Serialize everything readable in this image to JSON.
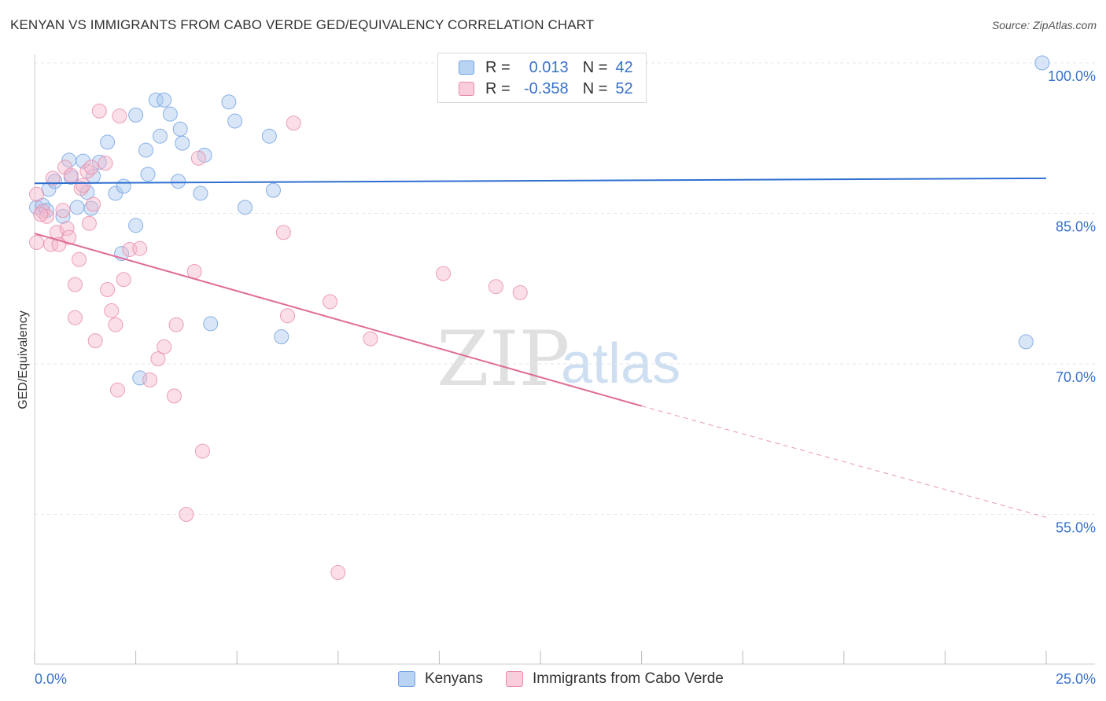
{
  "title": "KENYAN VS IMMIGRANTS FROM CABO VERDE GED/EQUIVALENCY CORRELATION CHART",
  "source": "Source: ZipAtlas.com",
  "watermark": {
    "zip": "ZIP",
    "atlas": "atlas"
  },
  "legend": {
    "kenyans": {
      "r_label": "R =",
      "r_value": "0.013",
      "n_label": "N =",
      "n_value": "42"
    },
    "caboverde": {
      "r_label": "R =",
      "r_value": "-0.358",
      "n_label": "N =",
      "n_value": "52"
    }
  },
  "bottom_legend": {
    "kenyans": "Kenyans",
    "caboverde": "Immigrants from Cabo Verde"
  },
  "colors": {
    "blue_fill": "#a9c8f0",
    "blue_stroke": "#6f9fe0",
    "blue_line": "#2f6fd0",
    "pink_fill": "#f5b8cc",
    "pink_stroke": "#e98aa8",
    "pink_line": "#e06c97",
    "axis_text": "#3a72c9",
    "grid": "#e6e6e6"
  },
  "chart_data": {
    "type": "scatter",
    "title": "KENYAN VS IMMIGRANTS FROM CABO VERDE GED/EQUIVALENCY CORRELATION CHART",
    "xlabel": "",
    "ylabel": "GED/Equivalency",
    "xlim": [
      0,
      25
    ],
    "ylim": [
      41,
      101
    ],
    "x_tick_labels": [
      "0.0%",
      "25.0%"
    ],
    "y_ticks": [
      55,
      70,
      85,
      100
    ],
    "y_tick_labels": [
      "55.0%",
      "70.0%",
      "85.0%",
      "100.0%"
    ],
    "grid": true,
    "legend_position": "top-center",
    "series": [
      {
        "name": "Kenyans",
        "color": "#6f9fe0",
        "trend": {
          "x": [
            0,
            25
          ],
          "y": [
            88.0,
            88.5
          ],
          "dashed_from": null
        },
        "points": [
          [
            0.05,
            85.6
          ],
          [
            0.2,
            85.8
          ],
          [
            0.3,
            85.3
          ],
          [
            0.35,
            87.4
          ],
          [
            0.5,
            88.2
          ],
          [
            0.7,
            84.7
          ],
          [
            0.85,
            90.3
          ],
          [
            0.9,
            88.6
          ],
          [
            1.2,
            90.2
          ],
          [
            1.3,
            87.1
          ],
          [
            1.4,
            85.5
          ],
          [
            1.45,
            88.7
          ],
          [
            1.6,
            90.1
          ],
          [
            1.8,
            92.1
          ],
          [
            2.0,
            87.0
          ],
          [
            2.15,
            81.0
          ],
          [
            2.2,
            87.7
          ],
          [
            2.5,
            83.8
          ],
          [
            2.5,
            94.8
          ],
          [
            2.75,
            91.3
          ],
          [
            2.8,
            88.9
          ],
          [
            3.0,
            96.3
          ],
          [
            3.1,
            92.7
          ],
          [
            3.2,
            96.3
          ],
          [
            3.35,
            94.9
          ],
          [
            3.55,
            88.2
          ],
          [
            3.65,
            92.0
          ],
          [
            3.6,
            93.4
          ],
          [
            4.1,
            87.0
          ],
          [
            4.2,
            90.8
          ],
          [
            4.35,
            74.0
          ],
          [
            4.8,
            96.1
          ],
          [
            4.95,
            94.2
          ],
          [
            5.2,
            85.6
          ],
          [
            5.8,
            92.7
          ],
          [
            5.9,
            87.3
          ],
          [
            6.1,
            72.7
          ],
          [
            10.3,
            100.0
          ],
          [
            24.9,
            100.0
          ],
          [
            24.5,
            72.2
          ],
          [
            2.6,
            68.6
          ],
          [
            1.05,
            85.6
          ]
        ]
      },
      {
        "name": "Immigrants from Cabo Verde",
        "color": "#e98aa8",
        "trend": {
          "x": [
            0,
            15,
            25
          ],
          "y": [
            83.0,
            65.8,
            54.7
          ],
          "dashed_from": 15
        },
        "points": [
          [
            0.05,
            86.9
          ],
          [
            0.05,
            82.1
          ],
          [
            0.2,
            85.2
          ],
          [
            0.3,
            84.7
          ],
          [
            0.4,
            81.9
          ],
          [
            0.45,
            88.5
          ],
          [
            0.55,
            83.1
          ],
          [
            0.7,
            85.3
          ],
          [
            0.8,
            83.5
          ],
          [
            0.75,
            89.6
          ],
          [
            0.85,
            82.6
          ],
          [
            0.9,
            88.8
          ],
          [
            1.0,
            77.9
          ],
          [
            1.0,
            74.6
          ],
          [
            1.1,
            80.4
          ],
          [
            1.15,
            87.5
          ],
          [
            1.2,
            87.8
          ],
          [
            1.3,
            89.2
          ],
          [
            1.4,
            89.6
          ],
          [
            1.45,
            85.9
          ],
          [
            1.5,
            72.3
          ],
          [
            1.6,
            95.2
          ],
          [
            1.75,
            90.0
          ],
          [
            1.8,
            77.4
          ],
          [
            1.9,
            75.3
          ],
          [
            2.0,
            73.9
          ],
          [
            2.05,
            67.4
          ],
          [
            2.1,
            94.7
          ],
          [
            2.2,
            78.4
          ],
          [
            2.35,
            81.4
          ],
          [
            2.6,
            81.5
          ],
          [
            2.85,
            68.4
          ],
          [
            3.05,
            70.5
          ],
          [
            3.2,
            71.7
          ],
          [
            3.45,
            66.8
          ],
          [
            3.5,
            73.9
          ],
          [
            3.75,
            55.0
          ],
          [
            3.95,
            79.2
          ],
          [
            4.05,
            90.5
          ],
          [
            4.15,
            61.3
          ],
          [
            6.15,
            83.1
          ],
          [
            6.25,
            74.8
          ],
          [
            6.4,
            94.0
          ],
          [
            7.3,
            76.2
          ],
          [
            7.5,
            49.2
          ],
          [
            8.3,
            72.5
          ],
          [
            10.1,
            79.0
          ],
          [
            11.4,
            77.7
          ],
          [
            12.0,
            77.1
          ],
          [
            0.15,
            84.9
          ],
          [
            0.6,
            81.9
          ],
          [
            1.35,
            84.0
          ]
        ]
      }
    ]
  }
}
